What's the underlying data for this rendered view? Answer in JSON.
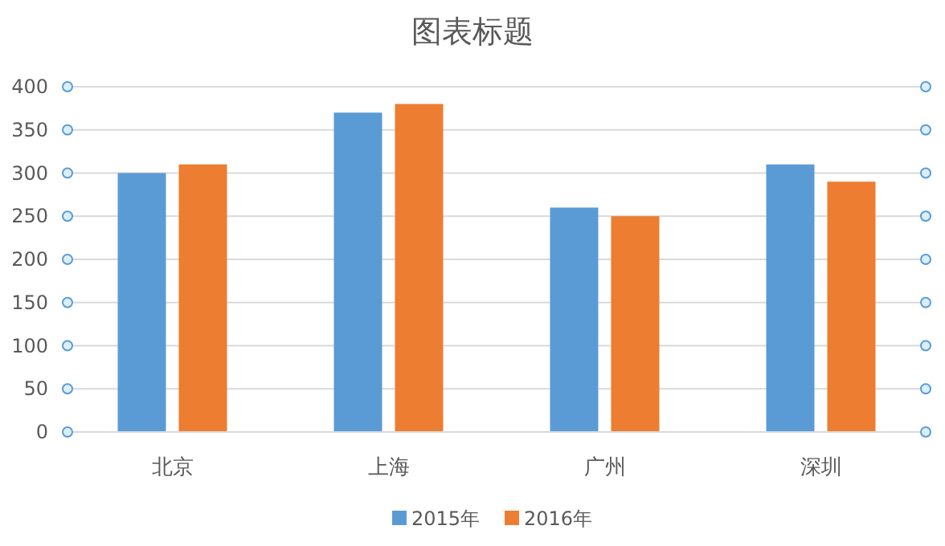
{
  "chart_data": {
    "type": "bar",
    "title": "图表标题",
    "categories": [
      "北京",
      "上海",
      "广州",
      "深圳"
    ],
    "series": [
      {
        "name": "2015年",
        "color": "#5b9bd5",
        "values": [
          300,
          370,
          260,
          310
        ]
      },
      {
        "name": "2016年",
        "color": "#ed7d31",
        "values": [
          310,
          380,
          250,
          290
        ]
      }
    ],
    "ylim": [
      0,
      400
    ],
    "yticks": [
      0,
      50,
      100,
      150,
      200,
      250,
      300,
      350,
      400
    ],
    "grid": "y",
    "legend": "bottom"
  }
}
